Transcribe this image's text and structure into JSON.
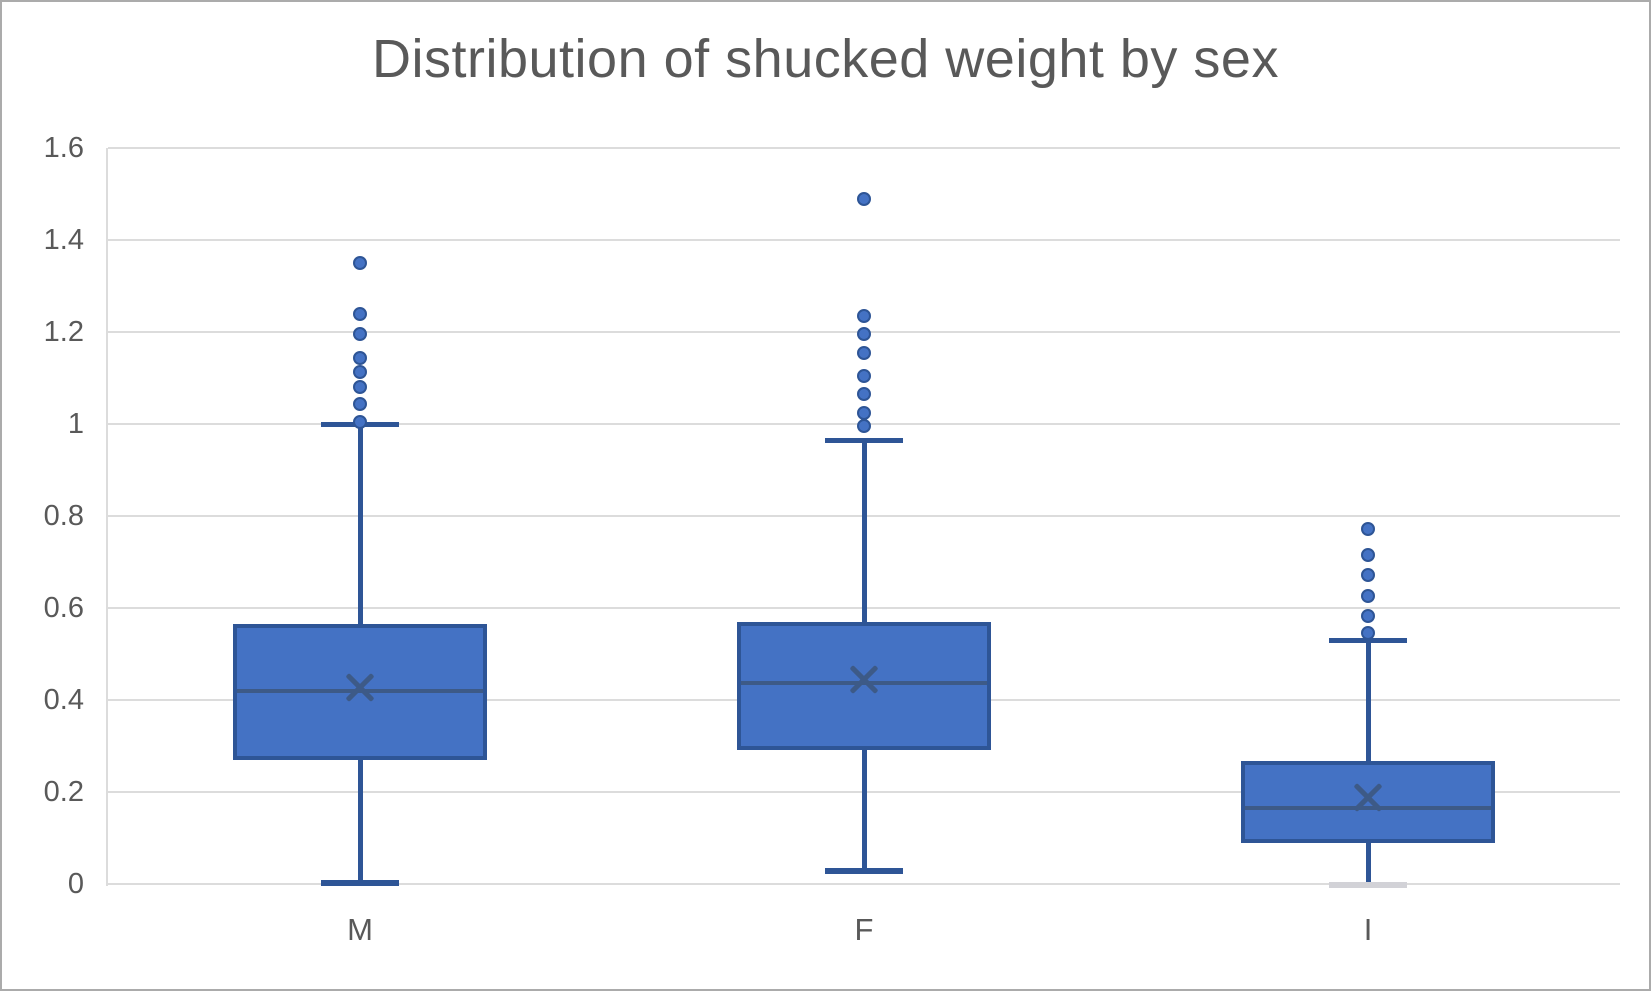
{
  "window": {
    "background": "#FFFFFF",
    "border_color": "#ABABAB"
  },
  "chart_data": {
    "type": "box",
    "title": "Distribution of shucked weight by sex",
    "xlabel": "",
    "ylabel": "",
    "categories": [
      "M",
      "F",
      "I"
    ],
    "ylim": [
      0,
      1.6
    ],
    "ytick_step": 0.2,
    "ytick_labels": [
      "0",
      "0.2",
      "0.4",
      "0.6",
      "0.8",
      "1",
      "1.2",
      "1.4",
      "1.6"
    ],
    "grid": true,
    "legend_position": "none",
    "series": [
      {
        "name": "M",
        "whisker_low": 0.005,
        "q1": 0.27,
        "median": 0.42,
        "mean": 0.428,
        "q3": 0.565,
        "whisker_high": 1.0,
        "outliers": [
          1.004,
          1.043,
          1.08,
          1.113,
          1.143,
          1.196,
          1.239,
          1.35
        ]
      },
      {
        "name": "F",
        "whisker_low": 0.03,
        "q1": 0.291,
        "median": 0.437,
        "mean": 0.445,
        "q3": 0.57,
        "whisker_high": 0.965,
        "outliers": [
          0.995,
          1.025,
          1.065,
          1.105,
          1.155,
          1.195,
          1.235,
          1.49
        ]
      },
      {
        "name": "I",
        "whisker_low": 0.001,
        "q1": 0.089,
        "median": 0.165,
        "mean": 0.19,
        "q3": 0.2675,
        "whisker_high": 0.53,
        "whisker_low_cap_color": "#D2D2D7",
        "outliers": [
          0.545,
          0.583,
          0.627,
          0.672,
          0.715,
          0.772
        ]
      }
    ],
    "colors": {
      "box_fill": "#4472C4",
      "box_stroke": "#2E5596",
      "median_mean": "#3D5A87",
      "gridline": "#DCDCDC",
      "text": "#595959"
    }
  }
}
